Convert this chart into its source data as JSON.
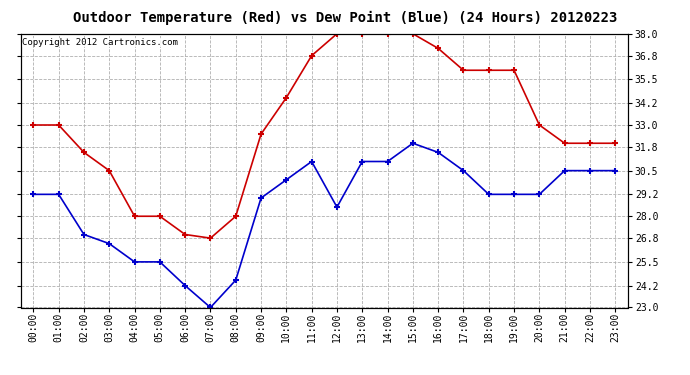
{
  "title": "Outdoor Temperature (Red) vs Dew Point (Blue) (24 Hours) 20120223",
  "copyright": "Copyright 2012 Cartronics.com",
  "hours": [
    0,
    1,
    2,
    3,
    4,
    5,
    6,
    7,
    8,
    9,
    10,
    11,
    12,
    13,
    14,
    15,
    16,
    17,
    18,
    19,
    20,
    21,
    22,
    23
  ],
  "temp_red": [
    33.0,
    33.0,
    31.5,
    30.5,
    28.0,
    28.0,
    27.0,
    26.8,
    28.0,
    32.5,
    34.5,
    36.8,
    38.0,
    38.0,
    38.0,
    38.0,
    37.2,
    36.0,
    36.0,
    36.0,
    33.0,
    32.0,
    32.0,
    32.0
  ],
  "dew_blue": [
    29.2,
    29.2,
    27.0,
    26.5,
    25.5,
    25.5,
    24.2,
    23.0,
    24.5,
    29.0,
    30.0,
    31.0,
    28.5,
    31.0,
    31.0,
    32.0,
    31.5,
    30.5,
    29.2,
    29.2,
    29.2,
    30.5,
    30.5,
    30.5
  ],
  "ylim_min": 23.0,
  "ylim_max": 38.0,
  "yticks": [
    23.0,
    24.2,
    25.5,
    26.8,
    28.0,
    29.2,
    30.5,
    31.8,
    33.0,
    34.2,
    35.5,
    36.8,
    38.0
  ],
  "ytick_labels": [
    "23.0",
    "24.2",
    "25.5",
    "26.8",
    "28.0",
    "29.2",
    "30.5",
    "31.8",
    "33.0",
    "34.2",
    "35.5",
    "36.8",
    "38.0"
  ],
  "red_color": "#cc0000",
  "blue_color": "#0000cc",
  "bg_color": "#ffffff",
  "grid_color": "#b0b0b0",
  "title_fontsize": 10,
  "tick_label_fontsize": 7,
  "copyright_fontsize": 6.5
}
